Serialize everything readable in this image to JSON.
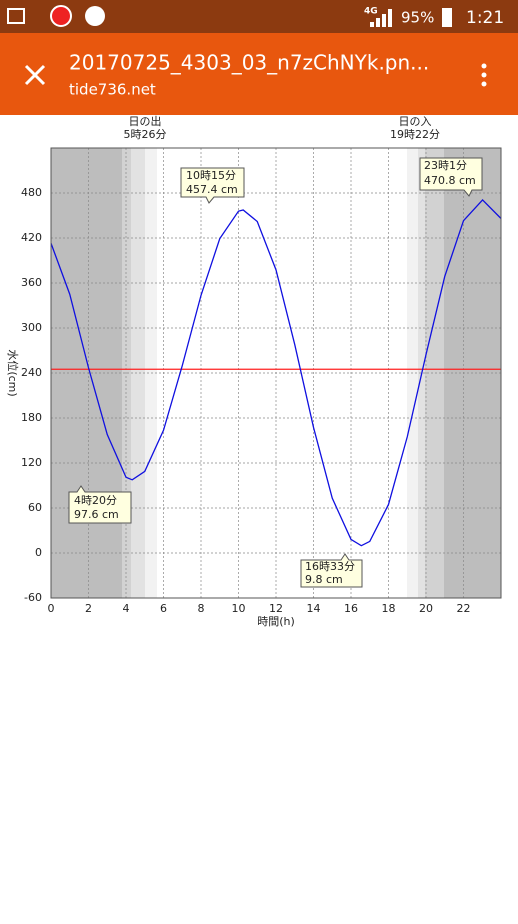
{
  "status_bar": {
    "network": "4G",
    "battery": "95%",
    "time": "1:21"
  },
  "app_bar": {
    "title": "20170725_4303_03_n7zChNYk.pn...",
    "subtitle": "tide736.net"
  },
  "chart_data": {
    "type": "line",
    "sunrise": {
      "label": "日の出",
      "time": "5時26分"
    },
    "sunset": {
      "label": "日の入",
      "time": "19時22分"
    },
    "x_label": "時間(h)",
    "y_label": "水位(cm)",
    "xlim": [
      0,
      24
    ],
    "xticks": [
      0,
      2,
      4,
      6,
      8,
      10,
      12,
      14,
      16,
      18,
      20,
      22
    ],
    "ylim": [
      -60,
      540
    ],
    "yticks": [
      -60,
      0,
      60,
      120,
      180,
      240,
      300,
      360,
      420,
      480
    ],
    "grid": true,
    "reference_line": {
      "value": 245,
      "color": "#ff2020"
    },
    "x": [
      0,
      1,
      2,
      3,
      4,
      4.333,
      5,
      6,
      7,
      8,
      9,
      10,
      10.25,
      11,
      12,
      13,
      14,
      15,
      16,
      16.55,
      17,
      18,
      19,
      20,
      21,
      22,
      23.017,
      24
    ],
    "series": [
      {
        "color": "#1010e0",
        "values": [
          413,
          345,
          247,
          158,
          101,
          97.6,
          108.8,
          163.6,
          249.8,
          343.5,
          419.1,
          455.8,
          457.4,
          442,
          377.5,
          277.9,
          167.6,
          73.1,
          18.1,
          9.8,
          15.4,
          64.7,
          154.8,
          264.5,
          368.7,
          443.1,
          470.8,
          446
        ]
      }
    ],
    "annotations": [
      {
        "time": "4時20分",
        "level": "97.6 cm"
      },
      {
        "time": "10時15分",
        "level": "457.4 cm"
      },
      {
        "time": "16時33分",
        "level": "9.8 cm"
      },
      {
        "time": "23時1分",
        "level": "470.8 cm"
      }
    ]
  }
}
